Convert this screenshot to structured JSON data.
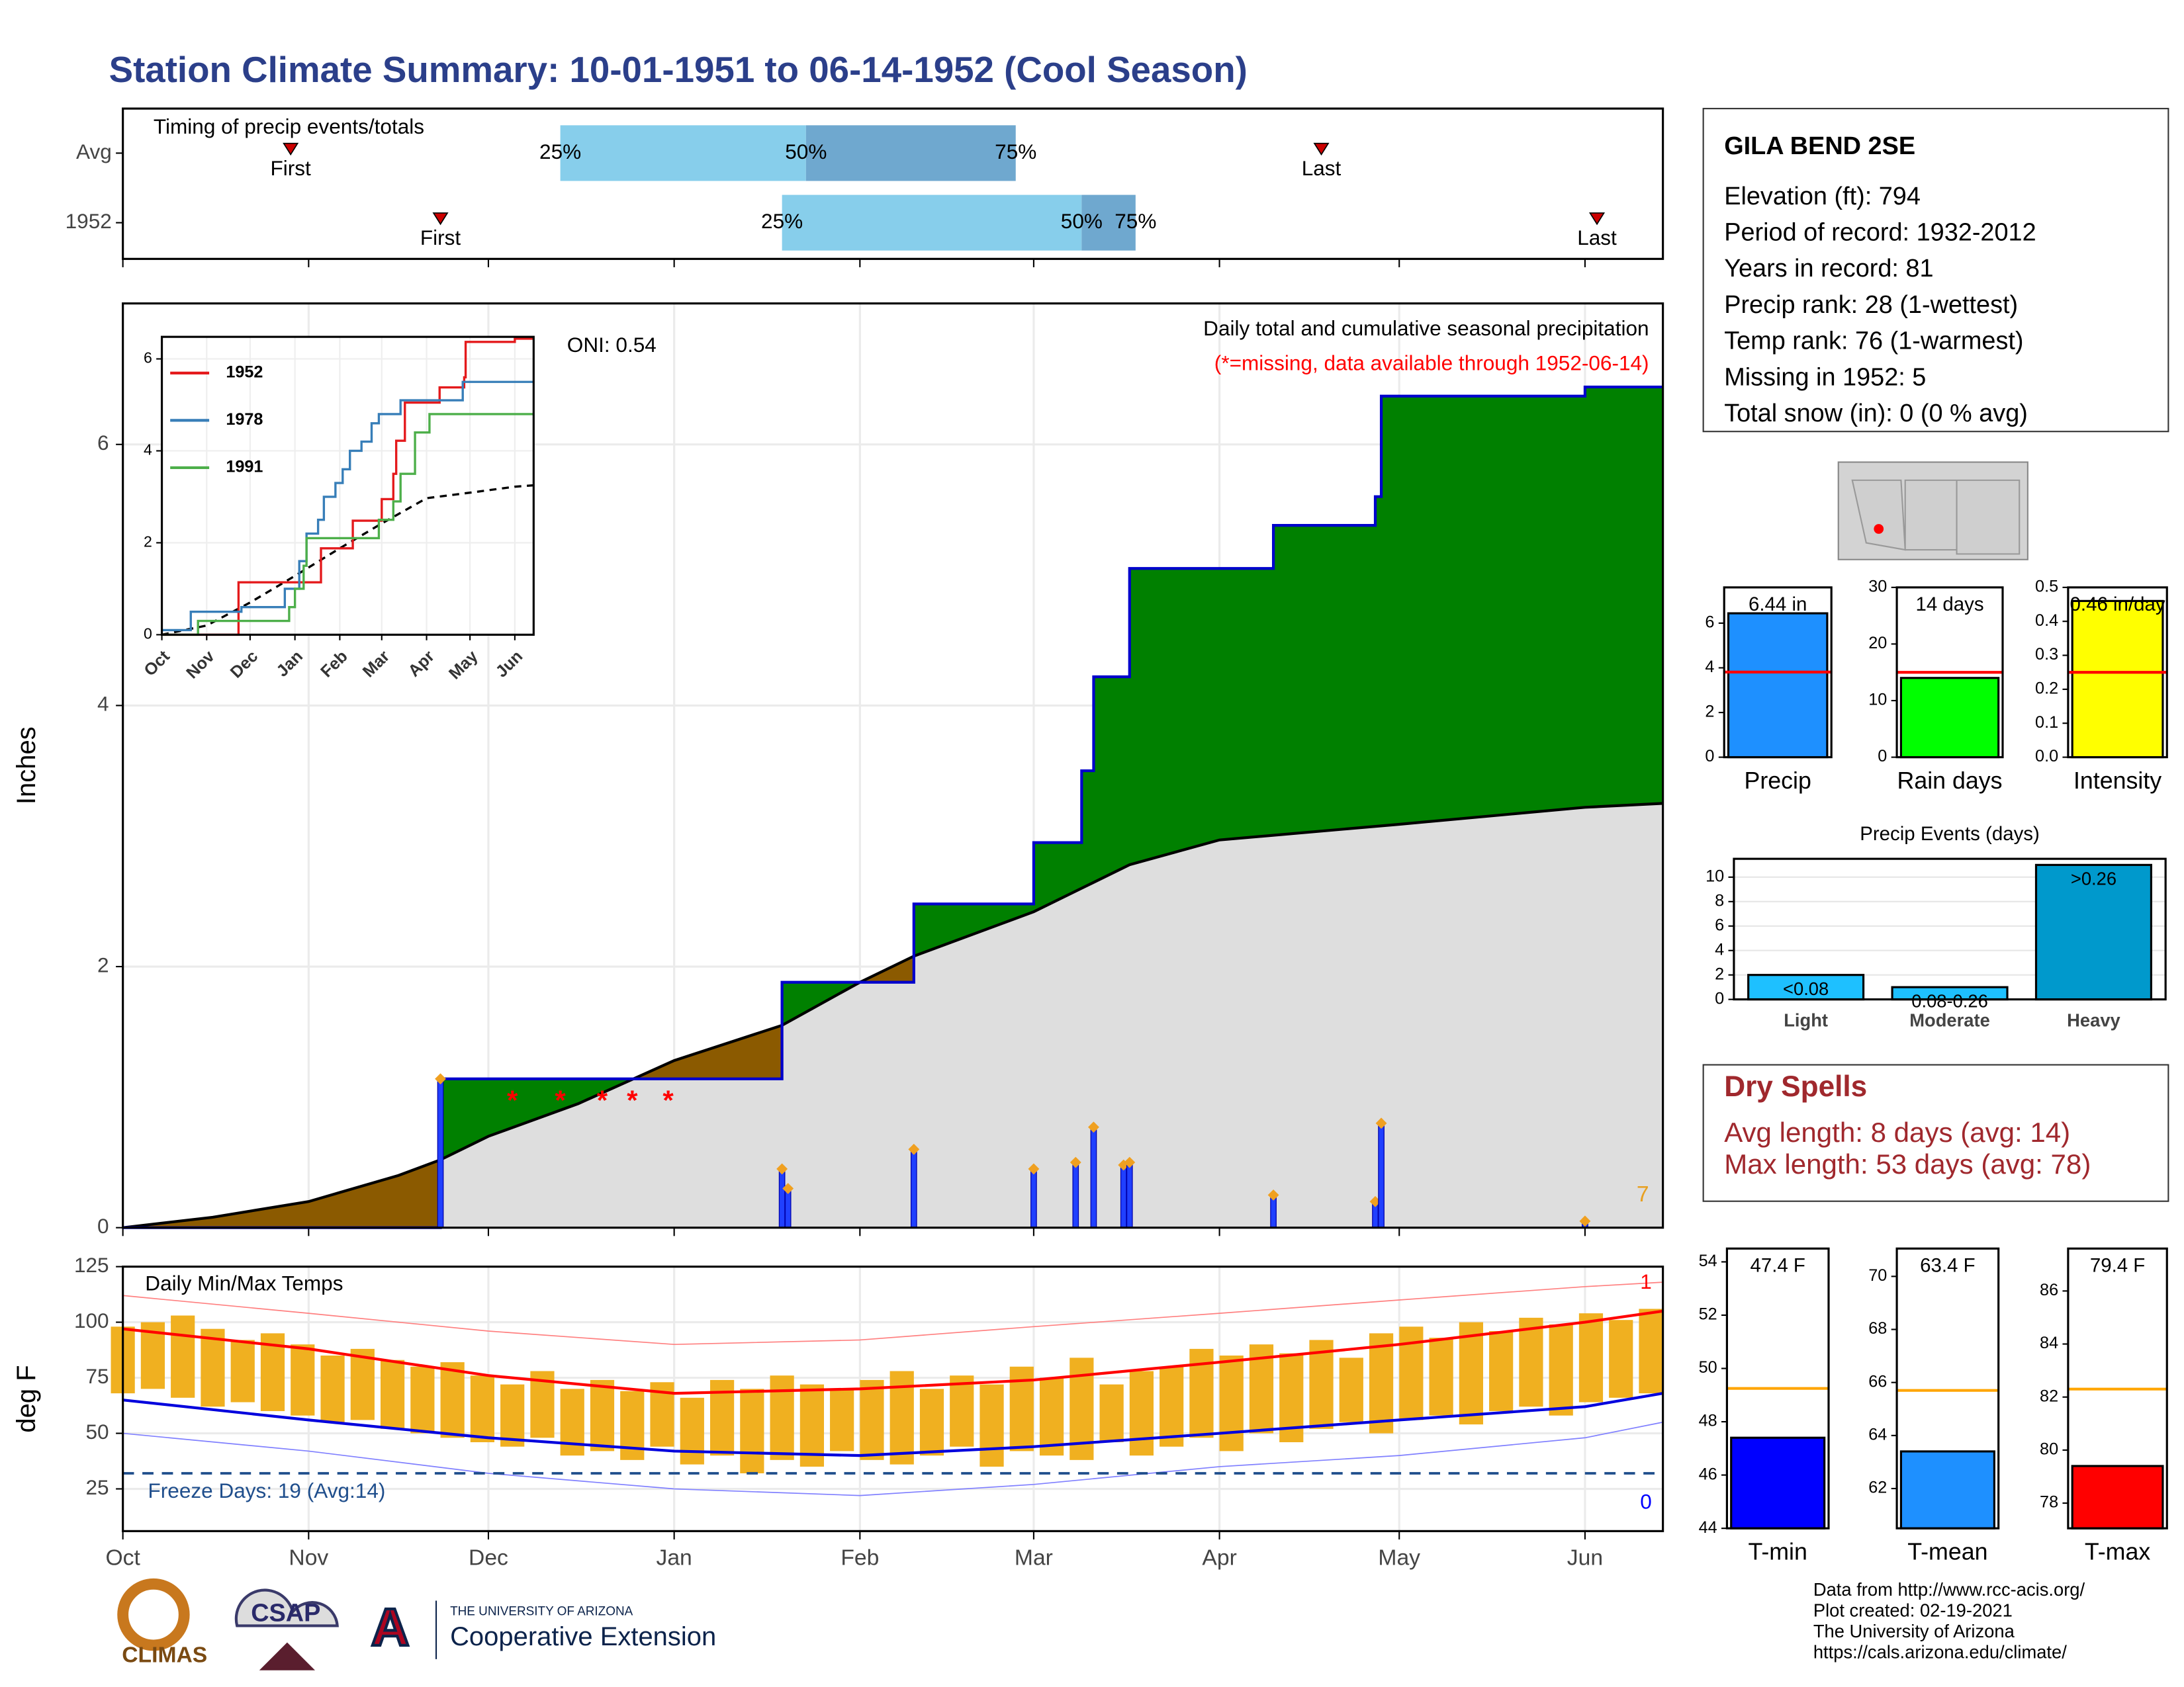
{
  "title": "Station Climate Summary: 10-01-1951 to 06-14-1952 (Cool Season)",
  "station": {
    "name": "GILA BEND 2SE",
    "lines": [
      "Elevation (ft): 794",
      "Period of record: 1932-2012",
      "Years in record: 81",
      "Precip rank: 28 (1-wettest)",
      "Temp rank: 76 (1-warmest)",
      "Missing in 1952: 5",
      "Total snow (in): 0 (0 % avg)"
    ]
  },
  "dry_spells": {
    "title": "Dry Spells",
    "lines": [
      "Avg length: 8 days (avg: 14)",
      "Max length: 53 days (avg: 78)"
    ]
  },
  "footer": [
    "Data from http://www.rcc-acis.org/",
    "Plot created: 02-19-2021",
    "The University of Arizona",
    "https://cals.arizona.edu/climate/"
  ],
  "logos": {
    "climas": "CLIMAS",
    "csap": "CSAP",
    "ua": "THE UNIVERSITY OF ARIZONA",
    "extension": "Cooperative Extension"
  },
  "chart_data": [
    {
      "type": "timeline",
      "title": "Timing of precip events/totals",
      "xlim": [
        0,
        257
      ],
      "xticks": [
        0,
        31,
        61,
        92,
        123,
        152,
        183,
        213,
        244
      ],
      "labels": {
        "first": "First",
        "last": "Last",
        "q25": "25%",
        "q50": "50%",
        "q75": "75%"
      },
      "colors": {
        "low": "#87ceeb",
        "high": "#6fa8cf",
        "marker": "#cc0000"
      },
      "rows": [
        {
          "name": "Avg",
          "first": 28,
          "q25": 73,
          "q50": 114,
          "q75": 149,
          "last": 200
        },
        {
          "name": "1952",
          "first": 53,
          "q25": 110,
          "q50": 160,
          "q75": 169,
          "last": 246
        }
      ]
    },
    {
      "type": "precip",
      "title": "Daily total and cumulative seasonal precipitation",
      "subtitle": "(*=missing, data available through 1952-06-14)",
      "annotation": "ONI: 0.54",
      "ylabel": "Inches",
      "corner_label": "7",
      "xlim": [
        0,
        257
      ],
      "ylim": [
        0,
        7.08
      ],
      "xticks": [
        0,
        31,
        61,
        92,
        123,
        152,
        183,
        213,
        244
      ],
      "yticks": [
        0,
        2,
        4,
        6
      ],
      "grid": true,
      "cumulative": {
        "x": [
          0,
          53,
          110,
          132,
          152,
          160,
          162,
          168,
          192,
          209,
          210,
          244,
          257
        ],
        "values": [
          0,
          1.14,
          1.88,
          2.48,
          2.95,
          3.5,
          4.22,
          5.05,
          5.38,
          5.6,
          6.37,
          6.44,
          6.44
        ]
      },
      "average": {
        "x": [
          0,
          15,
          31,
          46,
          53,
          61,
          76,
          92,
          110,
          123,
          132,
          152,
          160,
          168,
          183,
          213,
          244,
          257
        ],
        "values": [
          0,
          0.08,
          0.2,
          0.4,
          0.52,
          0.7,
          0.95,
          1.28,
          1.55,
          1.88,
          2.08,
          2.42,
          2.6,
          2.78,
          2.97,
          3.09,
          3.22,
          3.25
        ]
      },
      "daily": {
        "x": [
          53,
          110,
          111,
          132,
          152,
          159,
          162,
          167,
          168,
          192,
          209,
          210,
          244
        ],
        "values": [
          1.14,
          0.45,
          0.3,
          0.6,
          0.45,
          0.5,
          0.77,
          0.48,
          0.5,
          0.25,
          0.2,
          0.8,
          0.05
        ]
      },
      "missing": {
        "x": [
          65,
          73,
          80,
          85,
          91
        ],
        "marker": "*"
      },
      "colors": {
        "above": "#008000",
        "below": "#8b5a00",
        "base": "#dedede",
        "line": "#0000cc",
        "bars": "#2040ff"
      }
    },
    {
      "type": "line",
      "xlim": [
        0,
        257
      ],
      "ylim": [
        0,
        6.48
      ],
      "yticks": [
        0,
        2,
        4,
        6
      ],
      "xticks": [
        {
          "value": 0,
          "label": "Oct"
        },
        {
          "value": 31,
          "label": "Nov"
        },
        {
          "value": 61,
          "label": "Dec"
        },
        {
          "value": 92,
          "label": "Jan"
        },
        {
          "value": 123,
          "label": "Feb"
        },
        {
          "value": 152,
          "label": "Mar"
        },
        {
          "value": 183,
          "label": "Apr"
        },
        {
          "value": 213,
          "label": "May"
        },
        {
          "value": 244,
          "label": "Jun"
        }
      ],
      "series": [
        {
          "name": "1952",
          "color": "#e41a1c",
          "x": [
            0,
            53,
            110,
            132,
            152,
            160,
            162,
            168,
            192,
            209,
            210,
            244,
            257
          ],
          "values": [
            0,
            1.14,
            1.88,
            2.48,
            2.95,
            3.5,
            4.22,
            5.05,
            5.38,
            5.6,
            6.37,
            6.44,
            6.44
          ]
        },
        {
          "name": "1978",
          "color": "#377eb8",
          "x": [
            0,
            20,
            55,
            85,
            95,
            100,
            108,
            112,
            120,
            125,
            130,
            138,
            145,
            150,
            158,
            165,
            208,
            257
          ],
          "values": [
            0.1,
            0.5,
            0.6,
            1.0,
            1.6,
            2.2,
            2.5,
            3.0,
            3.3,
            3.6,
            4.0,
            4.2,
            4.6,
            4.8,
            4.8,
            5.1,
            5.5,
            5.5
          ]
        },
        {
          "name": "1991",
          "color": "#4daf4a",
          "x": [
            0,
            25,
            55,
            88,
            92,
            98,
            100,
            140,
            150,
            160,
            165,
            175,
            185,
            257
          ],
          "values": [
            0,
            0.3,
            0.3,
            0.6,
            1.0,
            1.5,
            2.1,
            2.1,
            2.5,
            2.9,
            3.5,
            4.4,
            4.8,
            4.8
          ]
        }
      ],
      "average": {
        "color": "#000000",
        "x": [
          0,
          31,
          61,
          92,
          123,
          152,
          183,
          213,
          244,
          257
        ],
        "values": [
          0,
          0.2,
          0.7,
          1.28,
          1.88,
          2.42,
          2.97,
          3.09,
          3.22,
          3.25
        ]
      }
    },
    {
      "type": "temp",
      "title": "Daily Min/Max Temps",
      "ylabel": "deg F",
      "xlim": [
        0,
        257
      ],
      "ylim": [
        6,
        125
      ],
      "yticks": [
        25,
        50,
        75,
        100,
        125
      ],
      "grid": true,
      "xticks": [
        {
          "value": 0,
          "label": "Oct"
        },
        {
          "value": 31,
          "label": "Nov"
        },
        {
          "value": 61,
          "label": "Dec"
        },
        {
          "value": 92,
          "label": "Jan"
        },
        {
          "value": 123,
          "label": "Feb"
        },
        {
          "value": 152,
          "label": "Mar"
        },
        {
          "value": 183,
          "label": "Apr"
        },
        {
          "value": 213,
          "label": "May"
        },
        {
          "value": 244,
          "label": "Jun"
        }
      ],
      "freeze": 32,
      "freeze_label": "Freeze Days: 19 (Avg:14)",
      "max_label": "1",
      "min_label": "0",
      "daily": {
        "color": "#f0b020",
        "x": [
          0,
          5,
          10,
          15,
          20,
          25,
          30,
          35,
          40,
          45,
          50,
          55,
          60,
          65,
          70,
          75,
          80,
          85,
          90,
          95,
          100,
          105,
          110,
          115,
          120,
          125,
          130,
          135,
          140,
          145,
          150,
          155,
          160,
          165,
          170,
          175,
          180,
          185,
          190,
          195,
          200,
          205,
          210,
          215,
          220,
          225,
          230,
          235,
          240,
          245,
          250,
          255
        ],
        "max": [
          98,
          100,
          103,
          97,
          92,
          95,
          90,
          85,
          88,
          83,
          80,
          82,
          76,
          72,
          78,
          70,
          74,
          69,
          73,
          66,
          74,
          70,
          76,
          72,
          70,
          74,
          78,
          70,
          76,
          72,
          80,
          75,
          84,
          72,
          78,
          80,
          88,
          85,
          90,
          86,
          92,
          84,
          95,
          98,
          93,
          100,
          96,
          102,
          99,
          104,
          101,
          106
        ],
        "min": [
          68,
          70,
          66,
          62,
          64,
          60,
          58,
          55,
          56,
          52,
          50,
          48,
          46,
          44,
          48,
          40,
          42,
          38,
          44,
          36,
          40,
          32,
          38,
          35,
          42,
          38,
          36,
          40,
          44,
          35,
          42,
          40,
          38,
          46,
          40,
          44,
          48,
          42,
          50,
          46,
          52,
          55,
          50,
          56,
          58,
          54,
          60,
          62,
          58,
          64,
          66,
          68
        ]
      },
      "lines": [
        {
          "color": "#ff0000",
          "width": 2,
          "x": [
            0,
            31,
            61,
            92,
            123,
            152,
            183,
            213,
            244,
            257
          ],
          "values": [
            97,
            88,
            76,
            68,
            70,
            74,
            82,
            90,
            100,
            105
          ]
        },
        {
          "color": "#0000dd",
          "width": 2,
          "x": [
            0,
            31,
            61,
            92,
            123,
            152,
            183,
            213,
            244,
            257
          ],
          "values": [
            65,
            56,
            48,
            42,
            40,
            44,
            50,
            56,
            62,
            68
          ]
        },
        {
          "color": "#ff8080",
          "width": 0.8,
          "x": [
            0,
            31,
            61,
            92,
            123,
            152,
            183,
            213,
            244,
            257
          ],
          "values": [
            112,
            104,
            96,
            90,
            92,
            98,
            104,
            110,
            116,
            118
          ]
        },
        {
          "color": "#8080ff",
          "width": 0.8,
          "x": [
            0,
            31,
            61,
            92,
            123,
            152,
            183,
            213,
            244,
            257
          ],
          "values": [
            50,
            42,
            32,
            25,
            22,
            27,
            35,
            40,
            48,
            55
          ]
        }
      ]
    },
    {
      "type": "bar",
      "categories": [
        "Precip"
      ],
      "values": [
        6.44
      ],
      "value_labels": [
        "6.44 in"
      ],
      "average": 3.81,
      "color": "#1e90ff",
      "average_color": "#ff0000",
      "ylim": [
        0,
        7.6
      ],
      "yticks": [
        0,
        2,
        4,
        6
      ]
    },
    {
      "type": "bar",
      "categories": [
        "Rain days"
      ],
      "values": [
        14
      ],
      "value_labels": [
        "14 days"
      ],
      "average": 15,
      "color": "#00ff00",
      "average_color": "#ff0000",
      "ylim": [
        0,
        30
      ],
      "yticks": [
        0,
        10,
        20,
        30
      ]
    },
    {
      "type": "bar",
      "categories": [
        "Intensity"
      ],
      "values": [
        0.46
      ],
      "value_labels": [
        "0.46 in/day"
      ],
      "average": 0.25,
      "color": "#ffff00",
      "average_color": "#ff0000",
      "ylim": [
        0,
        0.5
      ],
      "yticks": [
        {
          "value": 0,
          "label": "0.0"
        },
        0.1,
        0.2,
        0.3,
        0.4,
        0.5
      ]
    },
    {
      "type": "bar",
      "title": "Precip Events (days)",
      "categories": [
        "Light",
        "Moderate",
        "Heavy"
      ],
      "values": [
        2,
        1,
        11
      ],
      "value_labels": [
        "<0.08",
        "0.08-0.26",
        ">0.26"
      ],
      "colors": [
        "#1ec0ff",
        "#1ec0ff",
        "#0099cc"
      ],
      "ylim": [
        0,
        11.5
      ],
      "yticks": [
        0,
        2,
        4,
        6,
        8,
        10
      ],
      "grid": true
    },
    {
      "type": "bar",
      "categories": [
        "T-min"
      ],
      "values": [
        47.4
      ],
      "value_labels": [
        "47.4 F"
      ],
      "average": 49.25,
      "color": "#0000ff",
      "average_color": "#ffa500",
      "ylim": [
        44,
        54.5
      ],
      "yticks": [
        44,
        46,
        48,
        50,
        52,
        54
      ]
    },
    {
      "type": "bar",
      "categories": [
        "T-mean"
      ],
      "values": [
        63.4
      ],
      "value_labels": [
        "63.4 F"
      ],
      "average": 65.7,
      "color": "#1e90ff",
      "average_color": "#ffa500",
      "ylim": [
        60.5,
        71.05
      ],
      "yticks": [
        62,
        64,
        66,
        68,
        70
      ]
    },
    {
      "type": "bar",
      "categories": [
        "T-max"
      ],
      "values": [
        79.4
      ],
      "value_labels": [
        "79.4 F"
      ],
      "average": 82.3,
      "color": "#ff0000",
      "average_color": "#ffa500",
      "ylim": [
        77.05,
        87.6
      ],
      "yticks": [
        78,
        80,
        82,
        84,
        86
      ]
    }
  ]
}
